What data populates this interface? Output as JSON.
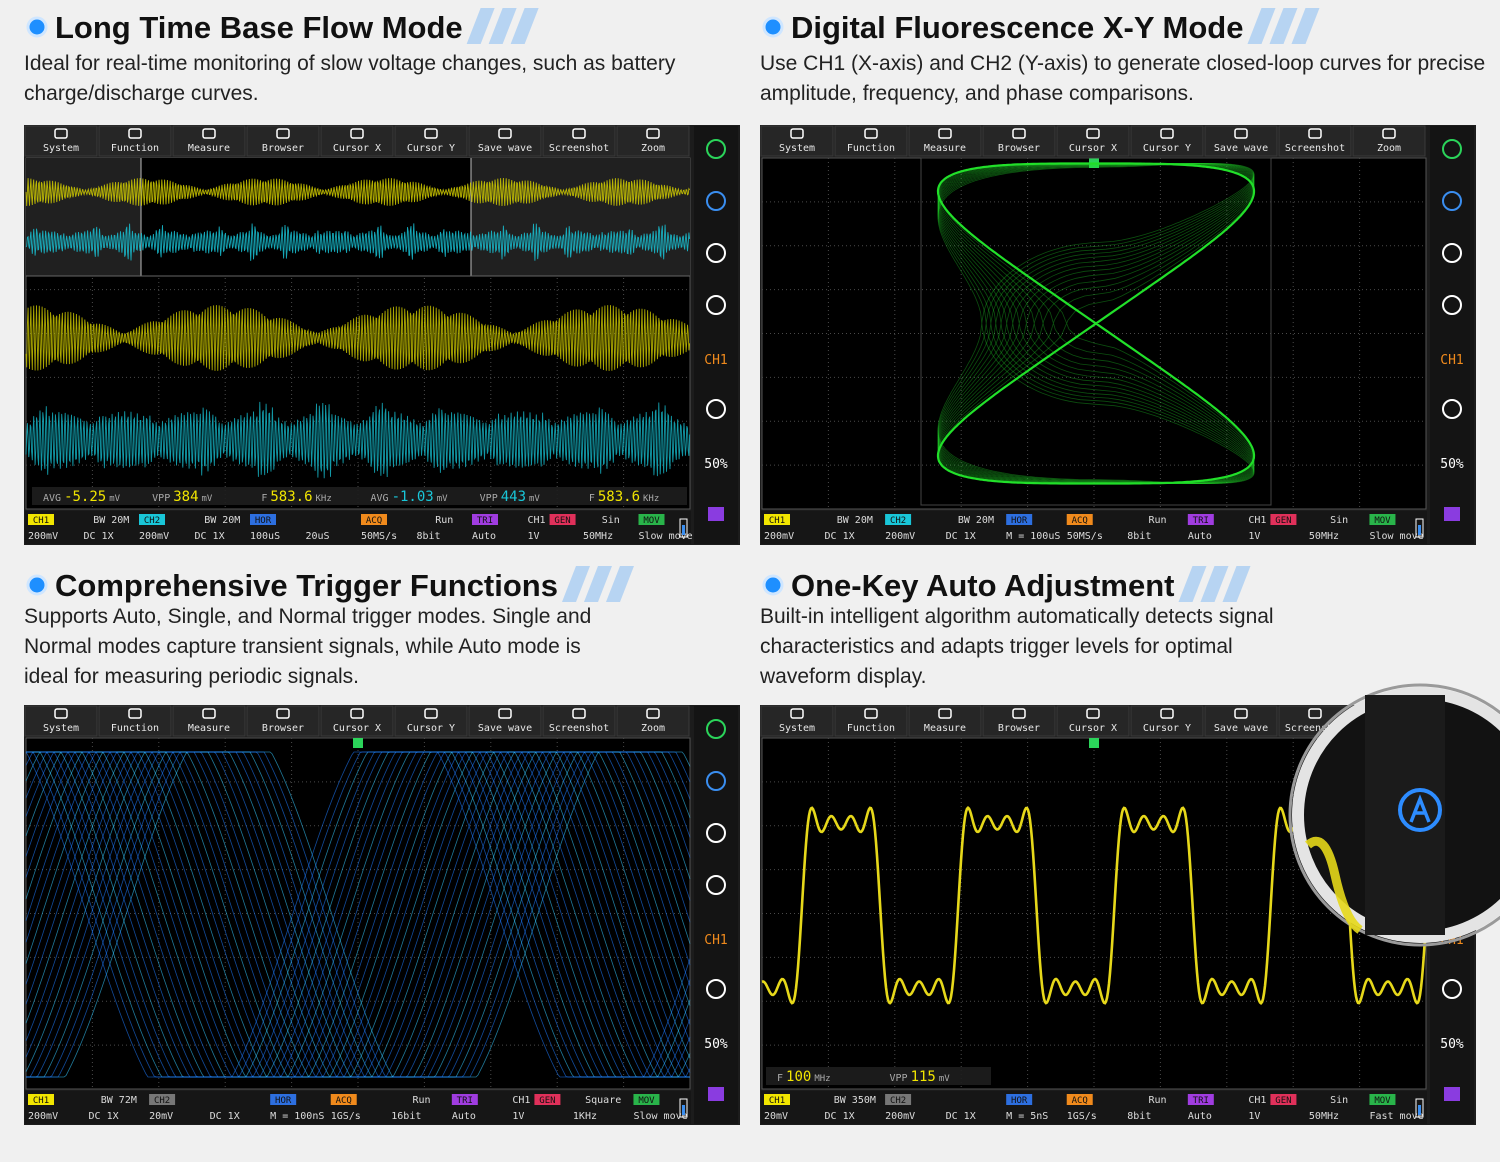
{
  "toolbar": [
    "System",
    "Function",
    "Measure",
    "Browser",
    "Cursor X",
    "Cursor Y",
    "Save wave",
    "Screenshot",
    "Zoom"
  ],
  "side": [
    "CH1",
    "50%"
  ],
  "panels": [
    {
      "title": "Long Time Base Flow Mode",
      "description": [
        "Ideal for real-time monitoring of slow voltage changes, such as battery",
        "charge/discharge curves."
      ],
      "measurements": [
        {
          "label": "AVG",
          "value": "-5.25",
          "unit": "mV"
        },
        {
          "label": "VPP",
          "value": "384",
          "unit": "mV"
        },
        {
          "label": "F",
          "value": "583.6",
          "unit": "KHz"
        },
        {
          "label": "AVG",
          "value": "-1.03",
          "unit": "mV"
        },
        {
          "label": "VPP",
          "value": "443",
          "unit": "mV"
        },
        {
          "label": "F",
          "value": "583.6",
          "unit": "KHz"
        }
      ],
      "status": [
        {
          "head": "CH1",
          "color": "#f2e600",
          "text": "200mV"
        },
        {
          "top": "BW 20M",
          "text": "DC  1X"
        },
        {
          "head": "CH2",
          "color": "#19c6d8",
          "text": "200mV"
        },
        {
          "top": "BW 20M",
          "text": "DC  1X"
        },
        {
          "head": "HOR",
          "color": "#2d6fe0",
          "text": "100uS"
        },
        {
          "text": "20uS"
        },
        {
          "head": "ACQ",
          "color": "#f08a1c",
          "text": "50MS/s"
        },
        {
          "top": "Run",
          "text": "8bit"
        },
        {
          "head": "TRI",
          "color": "#a03ce0",
          "text": "Auto"
        },
        {
          "top": "CH1",
          "head": "GEN",
          "color": "#e0305a",
          "text": "1V"
        },
        {
          "top": "Sin",
          "text": "50MHz"
        },
        {
          "head": "MOV",
          "color": "#29b44a",
          "text": "Slow move"
        }
      ]
    },
    {
      "title": "Digital Fluorescence X-Y Mode",
      "description": [
        "Use CH1 (X-axis) and CH2 (Y-axis) to generate closed-loop curves for precise",
        "amplitude, frequency, and phase comparisons."
      ],
      "status": [
        {
          "head": "CH1",
          "color": "#f2e600",
          "text": "200mV"
        },
        {
          "top": "BW 20M",
          "text": "DC  1X"
        },
        {
          "head": "CH2",
          "color": "#19c6d8",
          "text": "200mV"
        },
        {
          "top": "BW 20M",
          "text": "DC  1X"
        },
        {
          "head": "HOR",
          "color": "#2d6fe0",
          "text": "M = 100uS"
        },
        {
          "head": "ACQ",
          "color": "#f08a1c",
          "text": "50MS/s"
        },
        {
          "top": "Run",
          "text": "8bit"
        },
        {
          "head": "TRI",
          "color": "#a03ce0",
          "text": "Auto"
        },
        {
          "top": "CH1",
          "head": "GEN",
          "color": "#e0305a",
          "text": "1V"
        },
        {
          "top": "Sin",
          "text": "50MHz"
        },
        {
          "head": "MOV",
          "color": "#29b44a",
          "text": "Slow move"
        }
      ]
    },
    {
      "title": "Comprehensive Trigger Functions",
      "description": [
        "Supports Auto, Single, and Normal trigger modes. Single and",
        "Normal modes capture transient signals, while Auto mode is",
        "ideal for measuring periodic signals."
      ],
      "status": [
        {
          "head": "CH1",
          "color": "#f2e600",
          "text": "200mV"
        },
        {
          "top": "BW 72M",
          "text": "DC  1X"
        },
        {
          "head": "CH2",
          "color": "#777777",
          "text": "20mV"
        },
        {
          "text": "DC  1X"
        },
        {
          "head": "HOR",
          "color": "#2d6fe0",
          "text": "M = 100nS"
        },
        {
          "head": "ACQ",
          "color": "#f08a1c",
          "text": "1GS/s"
        },
        {
          "top": "Run",
          "text": "16bit"
        },
        {
          "head": "TRI",
          "color": "#a03ce0",
          "text": "Auto"
        },
        {
          "top": "CH1",
          "head": "GEN",
          "color": "#e0305a",
          "text": "1V"
        },
        {
          "top": "Square",
          "text": "1KHz"
        },
        {
          "head": "MOV",
          "color": "#29b44a",
          "text": "Slow move"
        }
      ]
    },
    {
      "title": "One-Key Auto Adjustment",
      "description": [
        "Built-in intelligent algorithm automatically detects signal",
        "characteristics and adapts trigger levels for optimal",
        "waveform display."
      ],
      "measurements": [
        {
          "label": "F",
          "value": "100",
          "unit": "MHz"
        },
        {
          "label": "VPP",
          "value": "115",
          "unit": "mV"
        }
      ],
      "status": [
        {
          "head": "CH1",
          "color": "#f2e600",
          "text": "20mV"
        },
        {
          "top": "BW 350M",
          "text": "DC  1X"
        },
        {
          "head": "CH2",
          "color": "#777777",
          "text": "200mV"
        },
        {
          "text": "DC  1X"
        },
        {
          "head": "HOR",
          "color": "#2d6fe0",
          "text": "M = 5nS"
        },
        {
          "head": "ACQ",
          "color": "#f08a1c",
          "text": "1GS/s"
        },
        {
          "top": "Run",
          "text": "8bit"
        },
        {
          "head": "TRI",
          "color": "#a03ce0",
          "text": "Auto"
        },
        {
          "top": "CH1",
          "head": "GEN",
          "color": "#e0305a",
          "text": "1V"
        },
        {
          "top": "Sin",
          "text": "50MHz"
        },
        {
          "head": "MOV",
          "color": "#29b44a",
          "text": "Fast move"
        }
      ]
    }
  ]
}
